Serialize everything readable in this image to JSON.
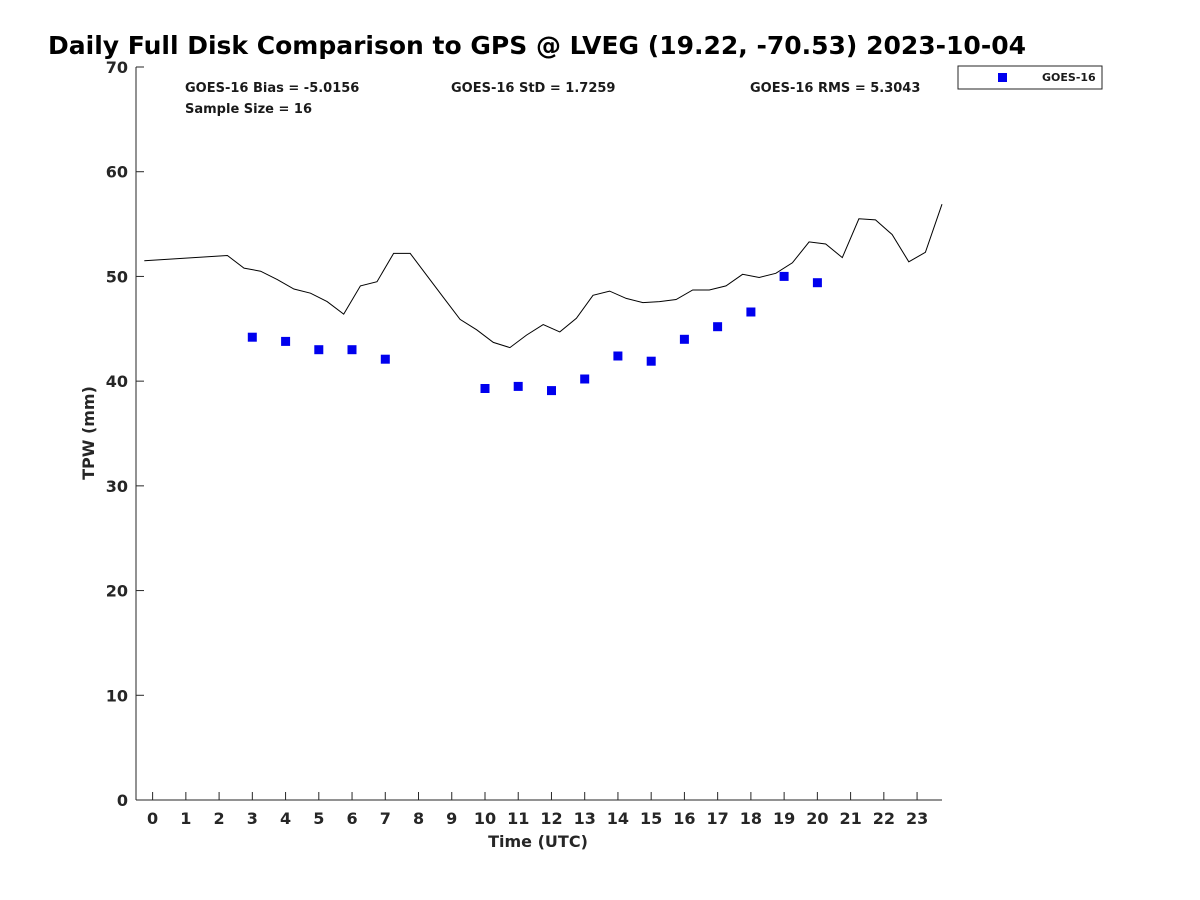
{
  "chart_data": {
    "type": "scatter",
    "title": "Daily Full Disk Comparison to GPS @ LVEG (19.22, -70.53) 2023-10-04",
    "xlabel": "Time (UTC)",
    "ylabel": "TPW (mm)",
    "xlim": [
      -0.5,
      23.75
    ],
    "ylim": [
      0,
      70
    ],
    "x_ticks": [
      0,
      1,
      2,
      3,
      4,
      5,
      6,
      7,
      8,
      9,
      10,
      11,
      12,
      13,
      14,
      15,
      16,
      17,
      18,
      19,
      20,
      21,
      22,
      23
    ],
    "y_ticks": [
      0,
      10,
      20,
      30,
      40,
      50,
      60,
      70
    ],
    "grid": false,
    "legend_position": "top-right, outside plot",
    "stats": {
      "bias": "GOES-16 Bias = -5.0156",
      "std": "GOES-16 StD = 1.7259",
      "rms": "GOES-16 RMS = 5.3043",
      "sample_size": "Sample Size = 16"
    },
    "series": [
      {
        "kind": "line",
        "color": "#000000",
        "x": [
          -0.25,
          2.25,
          2.75,
          3.25,
          3.75,
          4.25,
          4.75,
          5.25,
          5.75,
          6.25,
          6.75,
          7.25,
          7.75,
          8.25,
          8.75,
          9.25,
          9.75,
          10.25,
          10.75,
          11.25,
          11.75,
          12.25,
          12.75,
          13.25,
          13.75,
          14.25,
          14.75,
          15.25,
          15.75,
          16.25,
          16.75,
          17.25,
          17.75,
          18.25,
          18.75,
          19.25,
          19.75,
          20.25,
          20.75,
          21.25,
          21.75,
          22.25,
          22.75,
          23.25,
          23.75
        ],
        "y": [
          51.5,
          52.0,
          50.8,
          50.5,
          49.7,
          48.8,
          48.4,
          47.6,
          46.4,
          49.1,
          49.5,
          52.2,
          52.2,
          50.1,
          48.0,
          45.9,
          44.9,
          43.7,
          43.2,
          44.4,
          45.4,
          44.7,
          46.0,
          48.2,
          48.6,
          47.9,
          47.5,
          47.6,
          47.8,
          48.7,
          48.7,
          49.1,
          50.2,
          49.9,
          50.3,
          51.3,
          53.3,
          53.1,
          51.8,
          55.5,
          55.4,
          54.0,
          51.4,
          52.3,
          56.9
        ]
      },
      {
        "kind": "scatter",
        "name": "GOES-16",
        "color": "#0000ee",
        "marker": "square",
        "x": [
          3,
          4,
          5,
          6,
          7,
          10,
          11,
          12,
          13,
          14,
          15,
          16,
          17,
          18,
          19,
          20
        ],
        "y": [
          44.2,
          43.8,
          43.0,
          43.0,
          42.1,
          39.3,
          39.5,
          39.1,
          40.2,
          42.4,
          41.9,
          44.0,
          45.2,
          46.6,
          50.0,
          49.4
        ]
      }
    ]
  }
}
